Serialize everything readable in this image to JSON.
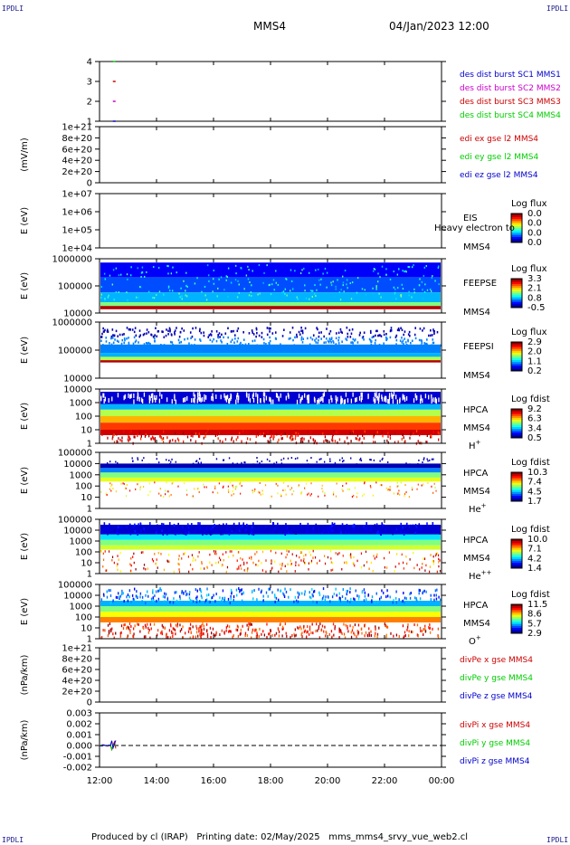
{
  "corner_label": "IPDLI",
  "header": {
    "spacecraft": "MMS4",
    "datetime": "04/Jan/2023 12:00"
  },
  "footer": {
    "produced_by": "Produced by cl (IRAP)",
    "printing_date": "Printing date: 02/May/2025",
    "script": "mms_mms4_srvy_vue_web2.cl"
  },
  "colors": {
    "red": "#cc0000",
    "green": "#00cc00",
    "blue": "#0000cc",
    "magenta": "#cc00cc"
  },
  "chart_data": {
    "type": "multi-panel time series (line + spectrogram)",
    "x_ticks": [
      "12:00",
      "14:00",
      "16:00",
      "18:00",
      "20:00",
      "22:00",
      "00:00"
    ],
    "panels": [
      {
        "id": "des-burst",
        "type": "scatter",
        "ylabel": "",
        "yticks": [
          "4",
          "3",
          "2",
          "1"
        ],
        "legend": [
          {
            "text": "des dist burst SC1 MMS1",
            "color": "#0000cc"
          },
          {
            "text": "des dist burst SC2 MMS2",
            "color": "#cc00cc"
          },
          {
            "text": "des dist burst SC3 MMS3",
            "color": "#cc0000"
          },
          {
            "text": "des dist burst SC4 MMS4",
            "color": "#00cc00"
          }
        ],
        "points": [
          {
            "sc": 4,
            "time": "12:30",
            "color": "#00cc00"
          },
          {
            "sc": 3,
            "time": "12:30",
            "color": "#cc0000"
          },
          {
            "sc": 2,
            "time": "12:30",
            "color": "#cc00cc"
          },
          {
            "sc": 1,
            "time": "12:30",
            "color": "#0000cc"
          }
        ]
      },
      {
        "id": "edi",
        "type": "line",
        "ylabel": "(mV/m)",
        "yticks": [
          "1e+21",
          "8e+20",
          "6e+20",
          "4e+20",
          "2e+20",
          "0"
        ],
        "legend": [
          {
            "text": "edi ex gse l2 MMS4",
            "color": "#cc0000"
          },
          {
            "text": "edi ey gse l2 MMS4",
            "color": "#00cc00"
          },
          {
            "text": "edi ez gse l2 MMS4",
            "color": "#0000cc"
          }
        ],
        "zero_line": true
      },
      {
        "id": "eis",
        "type": "heatmap",
        "ylabel": "E (eV)",
        "yticks": [
          "1e+07",
          "1e+06",
          "1e+05",
          "1e+04"
        ],
        "label": "EIS",
        "sc_label": "MMS4",
        "overlay_text": "Heavy electron to",
        "cbar_title": "Log flux",
        "cbar_ticks": [
          "0.0",
          "0.0",
          "0.0",
          "0.0"
        ],
        "empty": true
      },
      {
        "id": "feepse",
        "type": "heatmap",
        "ylabel": "E (eV)",
        "yticks": [
          "1000000",
          "100000",
          "10000"
        ],
        "label": "FEEPSE",
        "sc_label": "MMS4",
        "cbar_title": "Log flux",
        "cbar_ticks": [
          "3.3",
          "2.1",
          "0.8",
          "-0.5"
        ]
      },
      {
        "id": "feepsi",
        "type": "heatmap",
        "ylabel": "E (eV)",
        "yticks": [
          "1000000",
          "100000",
          "10000"
        ],
        "label": "FEEPSI",
        "sc_label": "MMS4",
        "cbar_title": "Log flux",
        "cbar_ticks": [
          "2.9",
          "2.0",
          "1.1",
          "0.2"
        ]
      },
      {
        "id": "hpca-h",
        "type": "heatmap",
        "ylabel": "E (eV)",
        "yticks": [
          "10000",
          "1000",
          "100",
          "10",
          "1"
        ],
        "label": "HPCA",
        "sc_label": "MMS4",
        "species": "H",
        "species_sup": "+",
        "cbar_title": "Log fdist",
        "cbar_ticks": [
          "9.2",
          "6.3",
          "3.4",
          "0.5"
        ]
      },
      {
        "id": "hpca-he1",
        "type": "heatmap",
        "ylabel": "E (eV)",
        "yticks": [
          "100000",
          "10000",
          "1000",
          "100",
          "10",
          "1"
        ],
        "label": "HPCA",
        "sc_label": "MMS4",
        "species": "He",
        "species_sup": "+",
        "cbar_title": "Log fdist",
        "cbar_ticks": [
          "10.3",
          "7.4",
          "4.5",
          "1.7"
        ]
      },
      {
        "id": "hpca-he2",
        "type": "heatmap",
        "ylabel": "E (eV)",
        "yticks": [
          "100000",
          "10000",
          "1000",
          "100",
          "10",
          "1"
        ],
        "label": "HPCA",
        "sc_label": "MMS4",
        "species": "He",
        "species_sup": "++",
        "cbar_title": "Log fdist",
        "cbar_ticks": [
          "10.0",
          "7.1",
          "4.2",
          "1.4"
        ]
      },
      {
        "id": "hpca-o",
        "type": "heatmap",
        "ylabel": "E (eV)",
        "yticks": [
          "100000",
          "10000",
          "1000",
          "100",
          "10",
          "1"
        ],
        "label": "HPCA",
        "sc_label": "MMS4",
        "species": "O",
        "species_sup": "+",
        "cbar_title": "Log fdist",
        "cbar_ticks": [
          "11.5",
          "8.6",
          "5.7",
          "2.9"
        ]
      },
      {
        "id": "divpe",
        "type": "line",
        "ylabel": "(nPa/km)",
        "yticks": [
          "1e+21",
          "8e+20",
          "6e+20",
          "4e+20",
          "2e+20",
          "0"
        ],
        "legend": [
          {
            "text": "divPe x gse MMS4",
            "color": "#cc0000"
          },
          {
            "text": "divPe y gse MMS4",
            "color": "#00cc00"
          },
          {
            "text": "divPe z gse MMS4",
            "color": "#0000cc"
          }
        ],
        "zero_line": true
      },
      {
        "id": "divpi",
        "type": "line",
        "ylabel": "(nPa/km)",
        "yticks": [
          "0.003",
          "0.002",
          "0.001",
          "0.000",
          "-0.001",
          "-0.002"
        ],
        "legend": [
          {
            "text": "divPi x gse MMS4",
            "color": "#cc0000"
          },
          {
            "text": "divPi y gse MMS4",
            "color": "#00cc00"
          },
          {
            "text": "divPi z gse MMS4",
            "color": "#0000cc"
          }
        ],
        "zero_line": true,
        "series_window": {
          "start": "12:00",
          "end": "12:35"
        }
      }
    ]
  }
}
